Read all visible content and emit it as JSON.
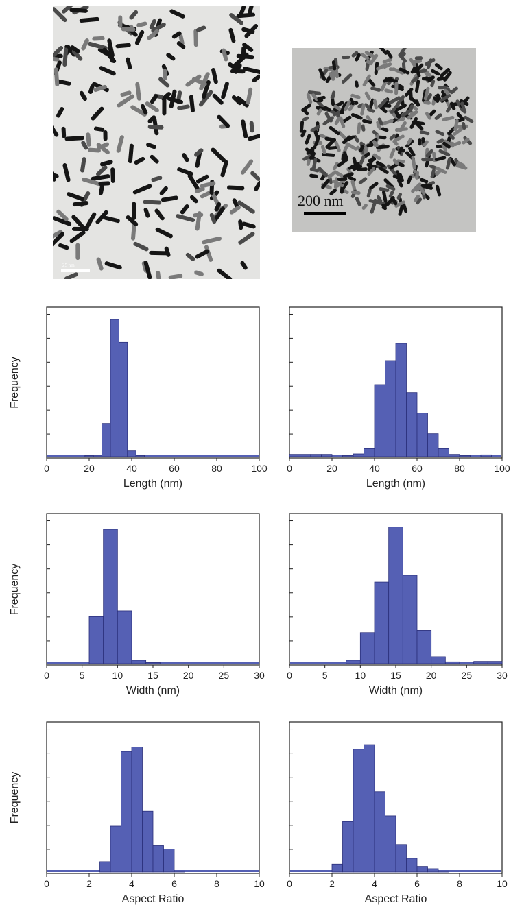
{
  "micrographs": [
    {
      "scale_label": "25 nm"
    },
    {
      "scale_label": "200 nm"
    }
  ],
  "colors": {
    "bar_fill": "#5560b4",
    "bar_stroke": "#2a2f7a",
    "baseline": "#5560b4",
    "frame": "#222222"
  },
  "chart_data": [
    {
      "type": "bar",
      "panel": "length-left",
      "xlabel": "Length (nm)",
      "ylabel": "Frequency",
      "xlim": [
        0,
        100
      ],
      "xticks": [
        0,
        20,
        40,
        60,
        80,
        100
      ],
      "ylim": [
        0,
        6
      ],
      "bin_width": 4,
      "bins": [
        [
          18,
          0.05
        ],
        [
          22,
          0.06
        ],
        [
          26,
          1.45
        ],
        [
          30,
          6.0
        ],
        [
          34,
          5.0
        ],
        [
          38,
          0.25
        ],
        [
          42,
          0.05
        ]
      ]
    },
    {
      "type": "bar",
      "panel": "length-right",
      "xlabel": "Length (nm)",
      "ylabel": "",
      "xlim": [
        0,
        100
      ],
      "xticks": [
        0,
        20,
        40,
        60,
        80,
        100
      ],
      "ylim": [
        0,
        6
      ],
      "bin_width": 5,
      "bins": [
        [
          0,
          0.1
        ],
        [
          5,
          0.1
        ],
        [
          10,
          0.1
        ],
        [
          15,
          0.1
        ],
        [
          25,
          0.05
        ],
        [
          30,
          0.12
        ],
        [
          35,
          0.35
        ],
        [
          40,
          3.15
        ],
        [
          45,
          4.2
        ],
        [
          50,
          4.95
        ],
        [
          55,
          2.8
        ],
        [
          60,
          1.9
        ],
        [
          65,
          1.0
        ],
        [
          70,
          0.35
        ],
        [
          75,
          0.1
        ],
        [
          80,
          0.05
        ],
        [
          90,
          0.08
        ]
      ]
    },
    {
      "type": "bar",
      "panel": "width-left",
      "xlabel": "Width (nm)",
      "ylabel": "Frequency",
      "xlim": [
        0,
        30
      ],
      "xticks": [
        0,
        5,
        10,
        15,
        20,
        25,
        30
      ],
      "ylim": [
        0,
        6
      ],
      "bin_width": 2,
      "bins": [
        [
          6,
          2.05
        ],
        [
          8,
          5.85
        ],
        [
          10,
          2.3
        ],
        [
          12,
          0.15
        ],
        [
          14,
          0.05
        ]
      ]
    },
    {
      "type": "bar",
      "panel": "width-right",
      "xlabel": "Width (nm)",
      "ylabel": "",
      "xlim": [
        0,
        30
      ],
      "xticks": [
        0,
        5,
        10,
        15,
        20,
        25,
        30
      ],
      "ylim": [
        0,
        6
      ],
      "bin_width": 2,
      "bins": [
        [
          8,
          0.15
        ],
        [
          10,
          1.35
        ],
        [
          12,
          3.55
        ],
        [
          14,
          5.95
        ],
        [
          16,
          3.85
        ],
        [
          18,
          1.45
        ],
        [
          20,
          0.3
        ],
        [
          22,
          0.08
        ],
        [
          26,
          0.1
        ],
        [
          28,
          0.1
        ]
      ]
    },
    {
      "type": "bar",
      "panel": "aspect-left",
      "xlabel": "Aspect Ratio",
      "ylabel": "Frequency",
      "xlim": [
        0,
        10
      ],
      "xticks": [
        0,
        2,
        4,
        6,
        8,
        10
      ],
      "ylim": [
        0,
        6
      ],
      "bin_width": 0.5,
      "bins": [
        [
          2.5,
          0.45
        ],
        [
          3.0,
          2.0
        ],
        [
          3.5,
          5.25
        ],
        [
          4.0,
          5.45
        ],
        [
          4.5,
          2.65
        ],
        [
          5.0,
          1.15
        ],
        [
          5.5,
          1.0
        ],
        [
          6.0,
          0.05
        ]
      ]
    },
    {
      "type": "bar",
      "panel": "aspect-right",
      "xlabel": "Aspect Ratio",
      "ylabel": "",
      "xlim": [
        0,
        10
      ],
      "xticks": [
        0,
        2,
        4,
        6,
        8,
        10
      ],
      "ylim": [
        0,
        6
      ],
      "bin_width": 0.5,
      "bins": [
        [
          2.0,
          0.35
        ],
        [
          2.5,
          2.2
        ],
        [
          3.0,
          5.35
        ],
        [
          3.5,
          5.55
        ],
        [
          4.0,
          3.5
        ],
        [
          4.5,
          2.45
        ],
        [
          5.0,
          1.2
        ],
        [
          5.5,
          0.6
        ],
        [
          6.0,
          0.25
        ],
        [
          6.5,
          0.15
        ],
        [
          7.0,
          0.05
        ]
      ]
    }
  ]
}
